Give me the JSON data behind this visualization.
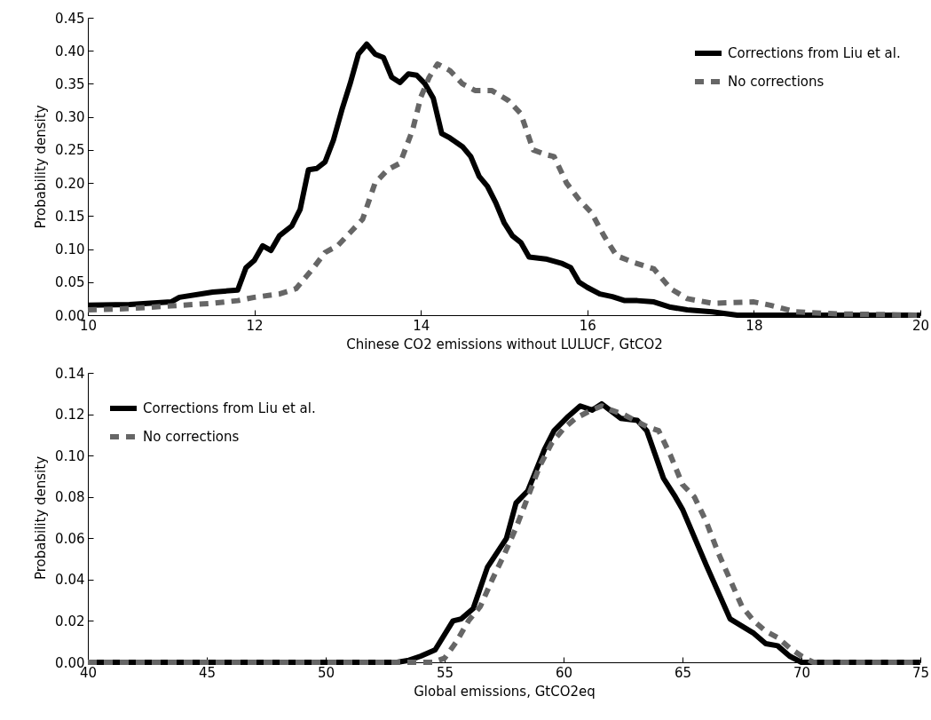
{
  "chart_data": [
    {
      "type": "line",
      "xlabel": "Chinese CO2 emissions without LULUCF, GtCO2",
      "ylabel": "Probability density",
      "xlim": [
        10,
        20
      ],
      "xticks": [
        10,
        12,
        14,
        16,
        18,
        20
      ],
      "ylim": [
        0,
        0.45
      ],
      "yticks": [
        {
          "value": 0,
          "label": "0.00"
        },
        0.05,
        {
          "value": 0.1,
          "label": "0.10"
        },
        0.15,
        {
          "value": 0.2,
          "label": "0.20"
        },
        0.25,
        {
          "value": 0.3,
          "label": "0.30"
        },
        0.35,
        {
          "value": 0.4,
          "label": "0.40"
        },
        0.45
      ],
      "legend": "top right",
      "grid": false,
      "marker": "none",
      "series": [
        {
          "name": "Corrections from Liu et al.",
          "color": "#000000",
          "line_style": "solid",
          "x": [
            10,
            10.5,
            11,
            11.1,
            11.5,
            11.8,
            11.9,
            12,
            12.1,
            12.2,
            12.3,
            12.45,
            12.55,
            12.65,
            12.75,
            12.85,
            12.95,
            13.05,
            13.15,
            13.25,
            13.35,
            13.45,
            13.55,
            13.65,
            13.75,
            13.85,
            13.95,
            14.05,
            14.15,
            14.25,
            14.35,
            14.5,
            14.6,
            14.7,
            14.8,
            14.9,
            15,
            15.1,
            15.2,
            15.3,
            15.5,
            15.7,
            15.8,
            15.9,
            16,
            16.15,
            16.3,
            16.45,
            16.6,
            16.8,
            17,
            17.2,
            17.5,
            17.8,
            20
          ],
          "values": [
            0.015,
            0.016,
            0.02,
            0.027,
            0.035,
            0.038,
            0.072,
            0.083,
            0.105,
            0.098,
            0.12,
            0.135,
            0.16,
            0.22,
            0.222,
            0.232,
            0.265,
            0.31,
            0.35,
            0.395,
            0.41,
            0.395,
            0.39,
            0.36,
            0.352,
            0.365,
            0.363,
            0.35,
            0.328,
            0.275,
            0.268,
            0.255,
            0.24,
            0.21,
            0.195,
            0.17,
            0.14,
            0.12,
            0.11,
            0.088,
            0.085,
            0.078,
            0.072,
            0.05,
            0.042,
            0.032,
            0.028,
            0.022,
            0.022,
            0.02,
            0.012,
            0.008,
            0.005,
            0,
            0
          ]
        },
        {
          "name": "No corrections",
          "color": "#666666",
          "line_style": "dashed",
          "x": [
            10,
            10.5,
            11,
            11.5,
            11.8,
            12,
            12.3,
            12.5,
            12.7,
            12.85,
            13,
            13.15,
            13.3,
            13.45,
            13.6,
            13.75,
            13.9,
            14,
            14.1,
            14.2,
            14.35,
            14.5,
            14.65,
            14.85,
            15.05,
            15.2,
            15.35,
            15.5,
            15.6,
            15.75,
            15.9,
            16.05,
            16.2,
            16.35,
            16.55,
            16.8,
            17,
            17.2,
            17.5,
            18,
            18.2,
            18.5,
            19,
            20
          ],
          "values": [
            0.008,
            0.01,
            0.014,
            0.018,
            0.022,
            0.027,
            0.032,
            0.04,
            0.07,
            0.095,
            0.105,
            0.125,
            0.145,
            0.2,
            0.22,
            0.23,
            0.28,
            0.33,
            0.36,
            0.38,
            0.37,
            0.35,
            0.34,
            0.34,
            0.325,
            0.305,
            0.25,
            0.243,
            0.24,
            0.2,
            0.175,
            0.155,
            0.12,
            0.09,
            0.08,
            0.07,
            0.04,
            0.025,
            0.018,
            0.02,
            0.015,
            0.005,
            0.002,
            0
          ]
        }
      ]
    },
    {
      "type": "line",
      "xlabel": "Global emissions, GtCO2eq",
      "ylabel": "Probability density",
      "xlim": [
        40,
        75
      ],
      "xticks": [
        40,
        45,
        50,
        55,
        60,
        65,
        70,
        75
      ],
      "ylim": [
        0,
        0.14
      ],
      "yticks": [
        {
          "value": 0,
          "label": "0.00"
        },
        0.02,
        0.04,
        0.06,
        0.08,
        {
          "value": 0.1,
          "label": "0.10"
        },
        0.12,
        0.14
      ],
      "legend": "top left",
      "grid": false,
      "marker": "none",
      "series": [
        {
          "name": "Corrections from Liu et al.",
          "color": "#000000",
          "line_style": "solid",
          "x": [
            40,
            53,
            53.5,
            54,
            54.6,
            55.35,
            55.7,
            56.2,
            56.8,
            57.6,
            58,
            58.5,
            59.2,
            59.6,
            60.2,
            60.7,
            61.2,
            61.6,
            62.4,
            63.1,
            63.5,
            64.2,
            64.7,
            65,
            66,
            67,
            68,
            68.5,
            69,
            69.5,
            70,
            75
          ],
          "values": [
            0,
            0,
            0.001,
            0.003,
            0.006,
            0.02,
            0.021,
            0.026,
            0.046,
            0.06,
            0.077,
            0.083,
            0.103,
            0.112,
            0.119,
            0.124,
            0.122,
            0.125,
            0.118,
            0.117,
            0.112,
            0.089,
            0.08,
            0.074,
            0.047,
            0.021,
            0.014,
            0.009,
            0.008,
            0.003,
            0,
            0
          ]
        },
        {
          "name": "No corrections",
          "color": "#666666",
          "line_style": "dashed",
          "x": [
            40,
            54.5,
            55,
            55.5,
            56,
            56.5,
            57,
            57.5,
            58,
            58.5,
            59,
            59.5,
            60,
            60.5,
            61,
            61.6,
            62,
            62.5,
            63,
            63.5,
            64,
            64.5,
            65,
            65.5,
            66,
            66.5,
            67,
            67.5,
            68,
            68.5,
            69,
            69.5,
            70,
            70.5,
            75
          ],
          "values": [
            0,
            0,
            0.002,
            0.01,
            0.02,
            0.027,
            0.04,
            0.052,
            0.065,
            0.08,
            0.095,
            0.106,
            0.113,
            0.118,
            0.121,
            0.124,
            0.122,
            0.12,
            0.117,
            0.114,
            0.112,
            0.1,
            0.086,
            0.08,
            0.068,
            0.053,
            0.04,
            0.027,
            0.02,
            0.015,
            0.012,
            0.007,
            0.003,
            0,
            0
          ]
        }
      ]
    }
  ]
}
